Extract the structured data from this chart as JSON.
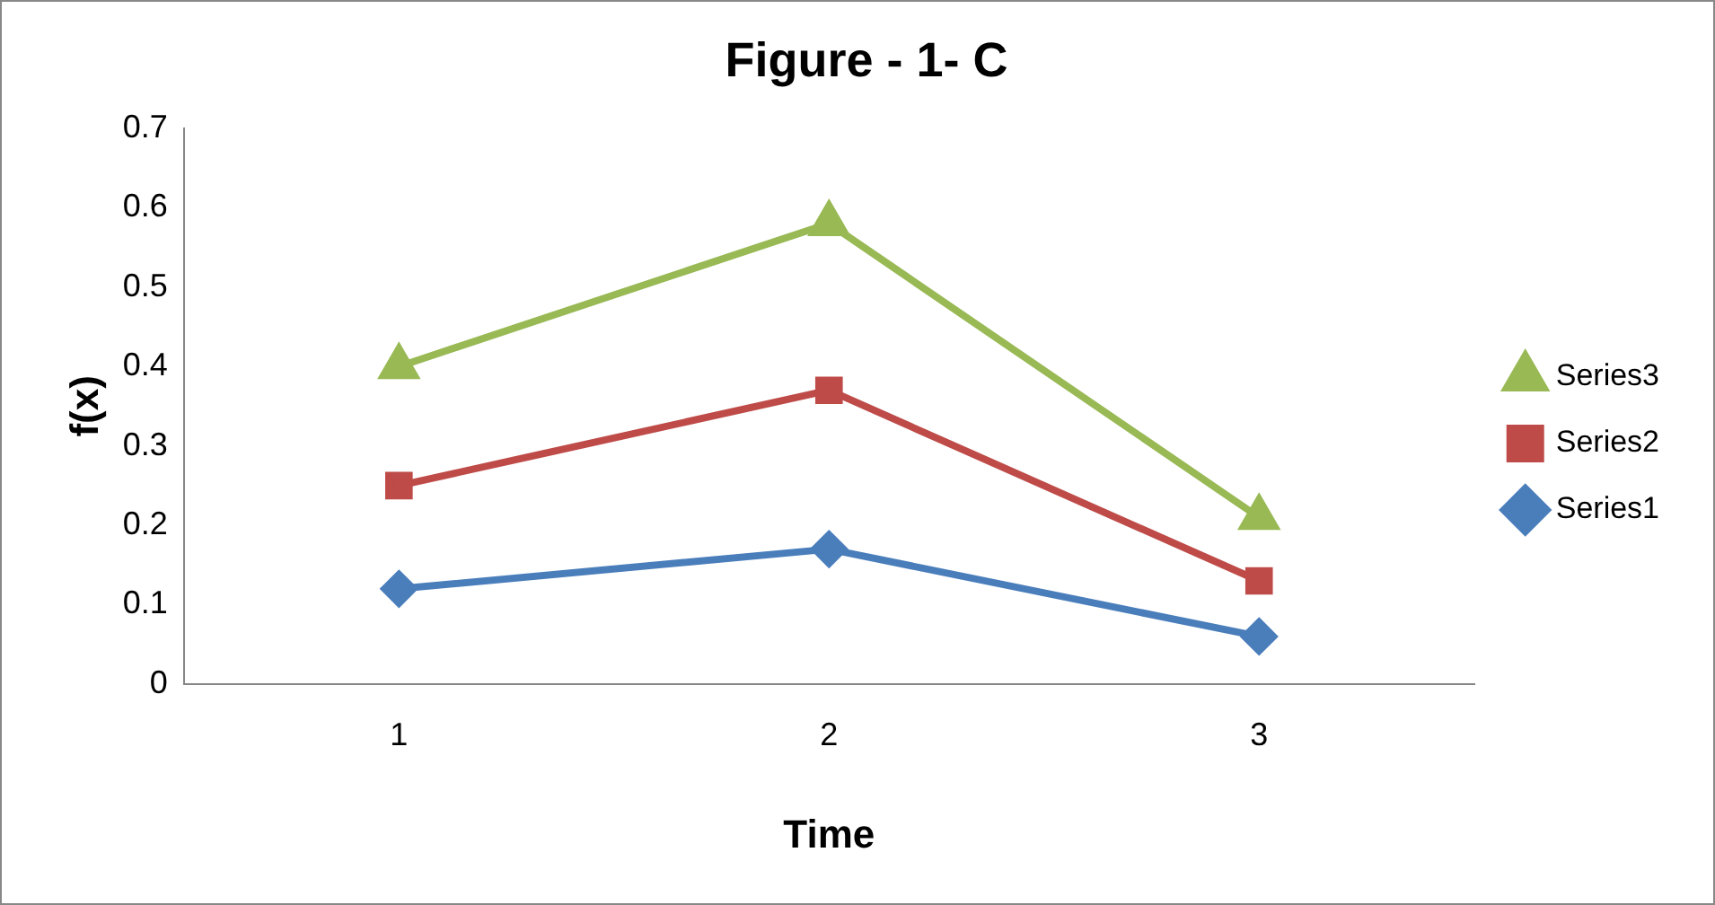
{
  "chart_data": {
    "type": "line",
    "title": "Figure - 1- C",
    "xlabel": "Time",
    "ylabel": "f(x)",
    "categories": [
      "1",
      "2",
      "3"
    ],
    "series": [
      {
        "name": "Series1",
        "color": "#4a7ebb",
        "values": [
          0.12,
          0.17,
          0.06
        ],
        "marker": "diamond"
      },
      {
        "name": "Series2",
        "color": "#be4b48",
        "values": [
          0.25,
          0.37,
          0.13
        ],
        "marker": "square"
      },
      {
        "name": "Series3",
        "color": "#98b954",
        "values": [
          0.4,
          0.58,
          0.21
        ],
        "marker": "triangle"
      }
    ],
    "ylim": [
      0,
      0.7
    ],
    "yticks": [
      0,
      0.1,
      0.2,
      0.3,
      0.4,
      0.5,
      0.6,
      0.7
    ],
    "grid": false,
    "legend": "right",
    "line_style": "solid"
  }
}
